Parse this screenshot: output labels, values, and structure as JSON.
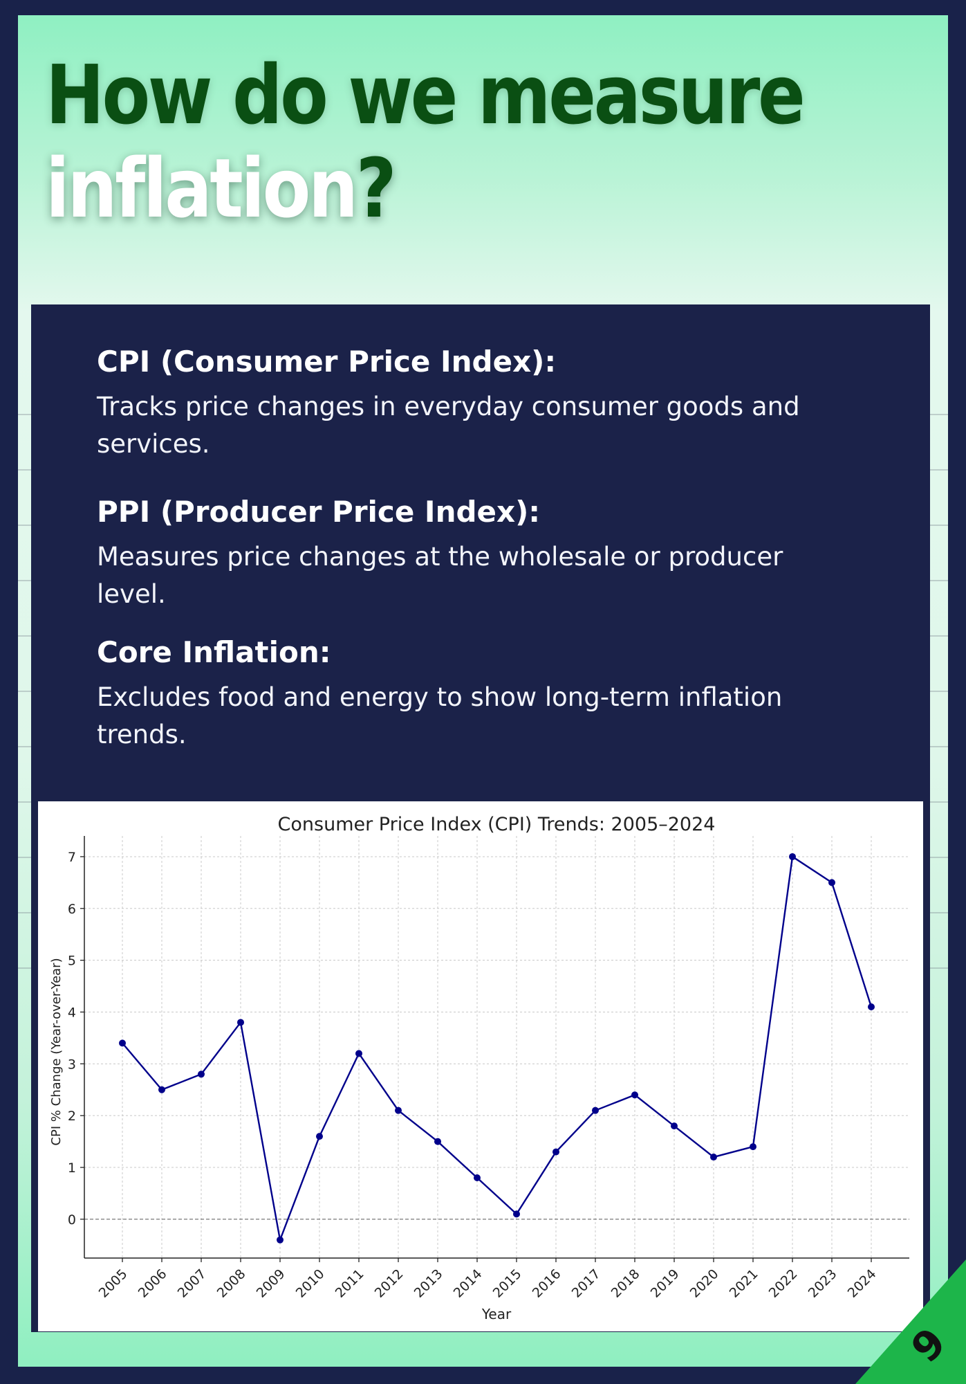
{
  "header": {
    "title_line1": "How do we measure",
    "title_line2_word": "inflation",
    "title_line2_mark": "?"
  },
  "definitions": [
    {
      "term": "CPI (Consumer Price Index):",
      "description": "Tracks price changes in everyday consumer goods and services."
    },
    {
      "term": "PPI (Producer Price Index):",
      "description": "Measures price changes at the wholesale or producer level."
    },
    {
      "term": "Core Inflation:",
      "description": "Excludes food and energy to show long-term inflation trends."
    }
  ],
  "page_number": "9",
  "colors": {
    "navy": "#1b2249",
    "title_green": "#0a4f13",
    "line": "#00008b",
    "corner_green": "#1db54a"
  },
  "chart_data": {
    "type": "line",
    "title": "Consumer Price Index (CPI) Trends: 2005–2024",
    "xlabel": "Year",
    "ylabel": "CPI % Change (Year-over-Year)",
    "categories": [
      "2005",
      "2006",
      "2007",
      "2008",
      "2009",
      "2010",
      "2011",
      "2012",
      "2013",
      "2014",
      "2015",
      "2016",
      "2017",
      "2018",
      "2019",
      "2020",
      "2021",
      "2022",
      "2023",
      "2024"
    ],
    "series": [
      {
        "values": [
          3.4,
          2.5,
          2.8,
          3.8,
          -0.4,
          1.6,
          3.2,
          2.1,
          1.5,
          0.8,
          0.1,
          1.3,
          2.1,
          2.4,
          1.8,
          1.2,
          1.4,
          7.0,
          6.5,
          4.1
        ],
        "color": "#00008b",
        "marker": "circle"
      }
    ],
    "ylim": [
      -0.75,
      7.4
    ],
    "yticks": [
      0,
      1,
      2,
      3,
      4,
      5,
      6,
      7
    ],
    "zero_line": "dashed",
    "grid": true,
    "legend": "none"
  }
}
